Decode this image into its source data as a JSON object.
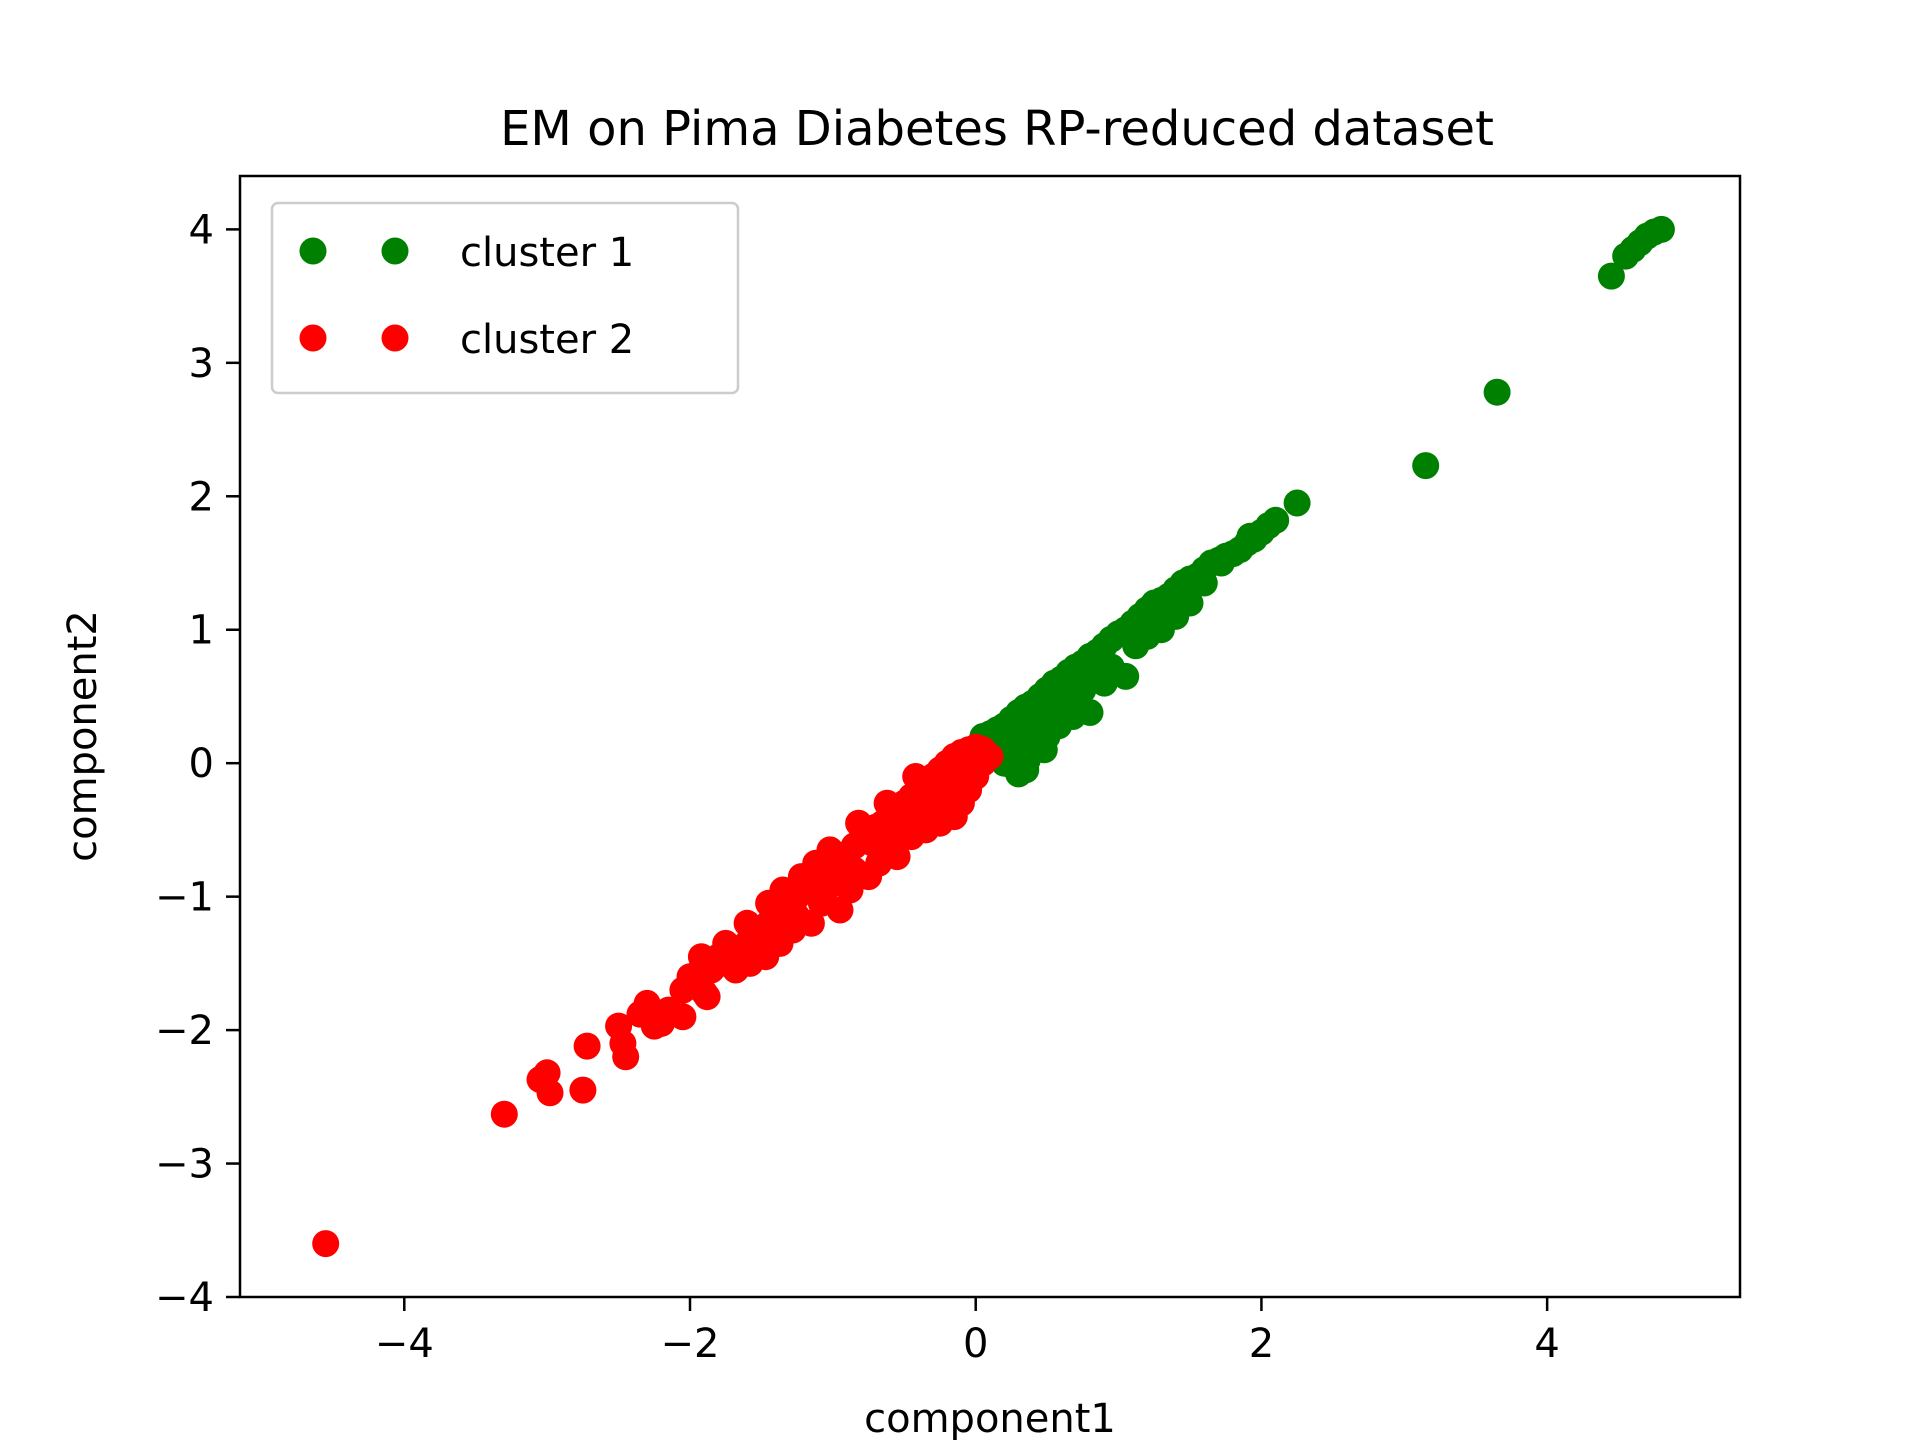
{
  "chart_data": {
    "type": "scatter",
    "title": "EM on Pima Diabetes RP-reduced dataset",
    "xlabel": "component1",
    "ylabel": "component2",
    "xlim": [
      -5.15,
      5.35
    ],
    "ylim": [
      -4.0,
      4.4
    ],
    "xticks": [
      -4,
      -2,
      0,
      2,
      4
    ],
    "yticks": [
      -4,
      -3,
      -2,
      -1,
      0,
      1,
      2,
      3,
      4
    ],
    "grid": false,
    "legend_position": "top-left",
    "series": [
      {
        "name": "cluster 1",
        "color": "#008000",
        "points": [
          [
            4.8,
            4.0
          ],
          [
            4.75,
            3.98
          ],
          [
            4.7,
            3.95
          ],
          [
            4.65,
            3.9
          ],
          [
            4.6,
            3.85
          ],
          [
            4.55,
            3.8
          ],
          [
            4.45,
            3.65
          ],
          [
            3.65,
            2.78
          ],
          [
            3.15,
            2.23
          ],
          [
            2.25,
            1.95
          ],
          [
            2.1,
            1.82
          ],
          [
            2.05,
            1.78
          ],
          [
            2.0,
            1.73
          ],
          [
            1.95,
            1.68
          ],
          [
            1.9,
            1.65
          ],
          [
            1.85,
            1.6
          ],
          [
            1.8,
            1.57
          ],
          [
            1.75,
            1.55
          ],
          [
            1.7,
            1.52
          ],
          [
            1.65,
            1.5
          ],
          [
            1.6,
            1.45
          ],
          [
            1.55,
            1.4
          ],
          [
            1.5,
            1.38
          ],
          [
            1.45,
            1.35
          ],
          [
            1.4,
            1.3
          ],
          [
            1.35,
            1.25
          ],
          [
            1.3,
            1.22
          ],
          [
            1.25,
            1.2
          ],
          [
            1.2,
            1.15
          ],
          [
            1.15,
            1.1
          ],
          [
            1.1,
            1.05
          ],
          [
            1.05,
            1.0
          ],
          [
            1.0,
            0.97
          ],
          [
            0.95,
            0.93
          ],
          [
            0.9,
            0.88
          ],
          [
            0.85,
            0.83
          ],
          [
            0.8,
            0.8
          ],
          [
            0.75,
            0.75
          ],
          [
            0.7,
            0.72
          ],
          [
            0.65,
            0.68
          ],
          [
            0.6,
            0.63
          ],
          [
            0.55,
            0.6
          ],
          [
            0.5,
            0.55
          ],
          [
            0.45,
            0.5
          ],
          [
            0.4,
            0.45
          ],
          [
            0.35,
            0.42
          ],
          [
            0.3,
            0.38
          ],
          [
            0.25,
            0.33
          ],
          [
            0.2,
            0.28
          ],
          [
            0.15,
            0.25
          ],
          [
            0.1,
            0.22
          ],
          [
            0.05,
            0.2
          ],
          [
            0.05,
            0.15
          ],
          [
            0.1,
            0.12
          ],
          [
            0.15,
            0.1
          ],
          [
            0.2,
            0.08
          ],
          [
            0.25,
            0.05
          ],
          [
            0.3,
            0.0
          ],
          [
            0.35,
            -0.05
          ],
          [
            0.3,
            -0.08
          ],
          [
            0.2,
            0.0
          ],
          [
            0.12,
            0.05
          ],
          [
            0.18,
            0.15
          ],
          [
            0.28,
            0.2
          ],
          [
            0.38,
            0.25
          ],
          [
            0.45,
            0.3
          ],
          [
            0.55,
            0.35
          ],
          [
            0.65,
            0.45
          ],
          [
            0.75,
            0.55
          ],
          [
            0.8,
            0.38
          ],
          [
            0.7,
            0.5
          ],
          [
            0.6,
            0.4
          ],
          [
            0.5,
            0.2
          ],
          [
            0.4,
            0.1
          ],
          [
            1.05,
            0.65
          ],
          [
            0.95,
            0.72
          ],
          [
            1.2,
            0.95
          ],
          [
            1.3,
            1.0
          ],
          [
            1.4,
            1.1
          ],
          [
            1.5,
            1.2
          ],
          [
            1.6,
            1.35
          ],
          [
            0.9,
            0.6
          ],
          [
            0.48,
            0.1
          ],
          [
            0.58,
            0.28
          ],
          [
            0.68,
            0.35
          ],
          [
            0.85,
            0.7
          ],
          [
            0.32,
            0.12
          ],
          [
            0.22,
            0.22
          ],
          [
            0.42,
            0.35
          ],
          [
            0.62,
            0.55
          ],
          [
            0.78,
            0.65
          ],
          [
            1.12,
            0.88
          ],
          [
            1.28,
            1.08
          ],
          [
            1.48,
            1.28
          ],
          [
            1.72,
            1.5
          ],
          [
            1.92,
            1.7
          ],
          [
            0.08,
            0.18
          ],
          [
            0.16,
            0.06
          ],
          [
            0.26,
            -0.02
          ],
          [
            0.36,
            0.02
          ],
          [
            0.52,
            0.48
          ]
        ]
      },
      {
        "name": "cluster 2",
        "color": "#ff0000",
        "points": [
          [
            -4.55,
            -3.6
          ],
          [
            -3.3,
            -2.63
          ],
          [
            -3.05,
            -2.37
          ],
          [
            -3.0,
            -2.32
          ],
          [
            -2.98,
            -2.47
          ],
          [
            -2.75,
            -2.45
          ],
          [
            -2.72,
            -2.12
          ],
          [
            -2.5,
            -1.97
          ],
          [
            -2.47,
            -2.1
          ],
          [
            -2.45,
            -2.2
          ],
          [
            -2.35,
            -1.88
          ],
          [
            -2.3,
            -1.8
          ],
          [
            -2.25,
            -1.97
          ],
          [
            -2.2,
            -1.95
          ],
          [
            -2.15,
            -1.85
          ],
          [
            -2.05,
            -1.9
          ],
          [
            -2.05,
            -1.7
          ],
          [
            -2.0,
            -1.6
          ],
          [
            -1.95,
            -1.58
          ],
          [
            -1.9,
            -1.72
          ],
          [
            -1.88,
            -1.75
          ],
          [
            -1.85,
            -1.55
          ],
          [
            -1.8,
            -1.45
          ],
          [
            -1.75,
            -1.5
          ],
          [
            -1.7,
            -1.4
          ],
          [
            -1.65,
            -1.45
          ],
          [
            -1.6,
            -1.35
          ],
          [
            -1.58,
            -1.5
          ],
          [
            -1.55,
            -1.3
          ],
          [
            -1.5,
            -1.25
          ],
          [
            -1.47,
            -1.45
          ],
          [
            -1.45,
            -1.2
          ],
          [
            -1.4,
            -1.15
          ],
          [
            -1.37,
            -1.35
          ],
          [
            -1.35,
            -1.1
          ],
          [
            -1.3,
            -1.05
          ],
          [
            -1.25,
            -1.0
          ],
          [
            -1.2,
            -0.95
          ],
          [
            -1.15,
            -1.2
          ],
          [
            -1.15,
            -0.9
          ],
          [
            -1.1,
            -0.85
          ],
          [
            -1.05,
            -0.8
          ],
          [
            -1.0,
            -0.75
          ],
          [
            -0.95,
            -1.1
          ],
          [
            -0.95,
            -0.7
          ],
          [
            -0.9,
            -0.68
          ],
          [
            -0.85,
            -0.62
          ],
          [
            -0.8,
            -0.58
          ],
          [
            -0.75,
            -0.85
          ],
          [
            -0.75,
            -0.52
          ],
          [
            -0.7,
            -0.48
          ],
          [
            -0.65,
            -0.45
          ],
          [
            -0.6,
            -0.4
          ],
          [
            -0.55,
            -0.7
          ],
          [
            -0.55,
            -0.35
          ],
          [
            -0.5,
            -0.3
          ],
          [
            -0.45,
            -0.25
          ],
          [
            -0.4,
            -0.2
          ],
          [
            -0.35,
            -0.5
          ],
          [
            -0.35,
            -0.15
          ],
          [
            -0.3,
            -0.1
          ],
          [
            -0.25,
            -0.05
          ],
          [
            -0.2,
            0.0
          ],
          [
            -0.15,
            0.05
          ],
          [
            -0.1,
            0.08
          ],
          [
            -0.05,
            0.1
          ],
          [
            0.0,
            0.12
          ],
          [
            0.05,
            0.1
          ],
          [
            0.1,
            0.05
          ],
          [
            0.05,
            0.0
          ],
          [
            0.0,
            -0.1
          ],
          [
            -0.05,
            -0.2
          ],
          [
            -0.1,
            -0.3
          ],
          [
            -0.15,
            -0.4
          ],
          [
            -0.2,
            -0.3
          ],
          [
            -0.25,
            -0.45
          ],
          [
            -0.3,
            -0.35
          ],
          [
            -1.45,
            -1.05
          ],
          [
            -1.35,
            -0.95
          ],
          [
            -1.25,
            -1.15
          ],
          [
            -1.05,
            -0.95
          ],
          [
            -0.85,
            -0.8
          ],
          [
            -0.65,
            -0.65
          ],
          [
            -0.45,
            -0.55
          ],
          [
            -1.6,
            -1.2
          ],
          [
            -1.75,
            -1.35
          ],
          [
            -1.92,
            -1.45
          ],
          [
            -1.22,
            -0.85
          ],
          [
            -1.02,
            -0.65
          ],
          [
            -0.82,
            -0.45
          ],
          [
            -0.62,
            -0.3
          ],
          [
            -0.42,
            -0.1
          ],
          [
            -0.68,
            -0.75
          ],
          [
            -0.88,
            -0.95
          ],
          [
            -1.08,
            -1.05
          ],
          [
            -1.28,
            -1.25
          ],
          [
            -1.52,
            -1.35
          ],
          [
            -1.68,
            -1.55
          ],
          [
            -0.58,
            -0.55
          ],
          [
            -0.38,
            -0.35
          ],
          [
            -0.18,
            -0.15
          ],
          [
            -0.08,
            0.0
          ],
          [
            0.02,
            0.05
          ],
          [
            -0.95,
            -0.85
          ],
          [
            -1.12,
            -0.75
          ],
          [
            -0.72,
            -0.6
          ],
          [
            -0.28,
            -0.25
          ],
          [
            -0.48,
            -0.42
          ],
          [
            -0.12,
            -0.05
          ],
          [
            -1.35,
            -1.25
          ],
          [
            -1.55,
            -1.4
          ]
        ]
      }
    ]
  }
}
